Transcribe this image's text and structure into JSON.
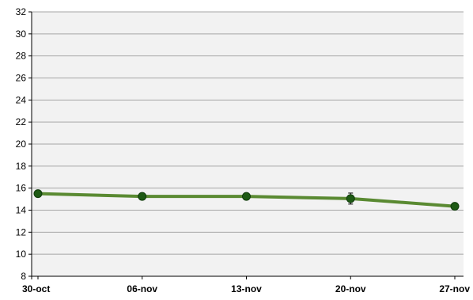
{
  "chart_data": {
    "type": "line",
    "title": "",
    "xlabel": "",
    "ylabel": "",
    "categories": [
      "30-oct",
      "06-nov",
      "13-nov",
      "20-nov",
      "27-nov"
    ],
    "series": [
      {
        "values": [
          15.5,
          15.25,
          15.25,
          15.05,
          14.35
        ],
        "errors": [
          0.0,
          0.0,
          0.0,
          0.5,
          0.0
        ],
        "line_color": "#5a8a32",
        "marker_color": "#1e5a14"
      }
    ],
    "ylim": [
      8,
      32
    ],
    "yticks": [
      8,
      10,
      12,
      14,
      16,
      18,
      20,
      22,
      24,
      26,
      28,
      30,
      32
    ],
    "grid": true,
    "legend": "none",
    "plot_background": "#f2f2f2",
    "grid_color": "#a6a6a6"
  }
}
